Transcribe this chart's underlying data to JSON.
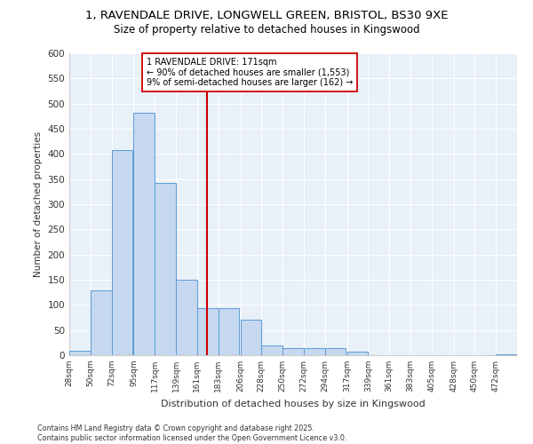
{
  "title_line1": "1, RAVENDALE DRIVE, LONGWELL GREEN, BRISTOL, BS30 9XE",
  "title_line2": "Size of property relative to detached houses in Kingswood",
  "xlabel": "Distribution of detached houses by size in Kingswood",
  "ylabel": "Number of detached properties",
  "footnote1": "Contains HM Land Registry data © Crown copyright and database right 2025.",
  "footnote2": "Contains public sector information licensed under the Open Government Licence v3.0.",
  "property_label": "1 RAVENDALE DRIVE: 171sqm",
  "annotation_line2": "← 90% of detached houses are smaller (1,553)",
  "annotation_line3": "9% of semi-detached houses are larger (162) →",
  "property_size": 171,
  "bin_starts": [
    28,
    50,
    72,
    95,
    117,
    139,
    161,
    183,
    206,
    228,
    250,
    272,
    294,
    317,
    339,
    361,
    383,
    405,
    428,
    450,
    472
  ],
  "bar_heights": [
    8,
    128,
    408,
    482,
    343,
    150,
    93,
    93,
    70,
    20,
    15,
    15,
    15,
    7,
    0,
    0,
    0,
    0,
    0,
    0,
    2
  ],
  "bar_color": "#c5d8f0",
  "bar_edge_color": "#5b9bd5",
  "vline_color": "#cc0000",
  "annotation_box_color": "#cc0000",
  "plot_bg_color": "#e8f0f8",
  "fig_bg_color": "#ffffff",
  "grid_color": "#ffffff",
  "ylim": [
    0,
    600
  ],
  "yticks": [
    0,
    50,
    100,
    150,
    200,
    250,
    300,
    350,
    400,
    450,
    500,
    550,
    600
  ]
}
